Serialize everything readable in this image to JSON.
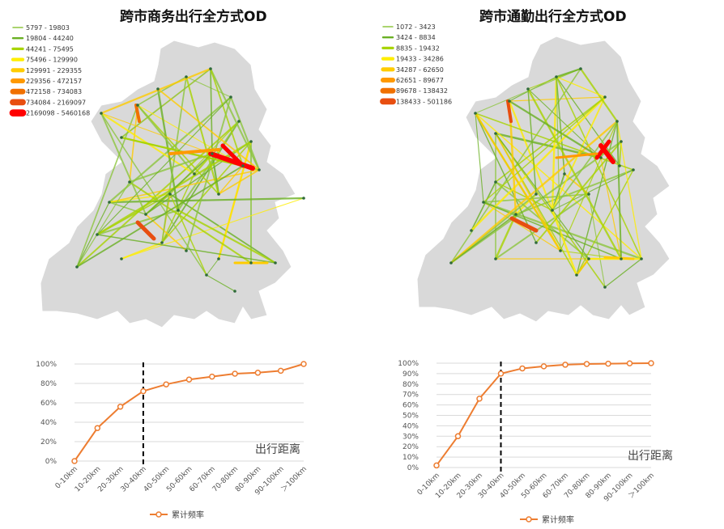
{
  "colors": {
    "line": "#ED7D31",
    "map_fill": "#d9d9d9",
    "map_stroke": "#ffffff",
    "grid": "#d9d9d9",
    "class_colors": [
      "#8dc63f",
      "#6ab023",
      "#a8d400",
      "#ffee00",
      "#ffcc00",
      "#ff9900",
      "#f07000",
      "#e84e10",
      "#ff0000"
    ]
  },
  "left": {
    "title": "跨市商务出行全方式OD",
    "legend": [
      "5797 - 19803",
      "19804 - 44240",
      "44241 - 75495",
      "75496 - 129990",
      "129991 - 229355",
      "229356 - 472157",
      "472158 - 734083",
      "734084 - 2169097",
      "2169098 - 5460168"
    ]
  },
  "right": {
    "title": "跨市通勤出行全方式OD",
    "legend": [
      "1072 - 3423",
      "3424 - 8834",
      "8835 - 19432",
      "19433 - 34286",
      "34287 - 62650",
      "62651 - 89677",
      "89678 - 138432",
      "138433 - 501186"
    ]
  },
  "chart_data": [
    {
      "type": "line",
      "categories": [
        "0-10km",
        "10-20km",
        "20-30km",
        "30-40km",
        "40-50km",
        "50-60km",
        "60-70km",
        "70-80km",
        "80-90km",
        "90-100km",
        "＞100km"
      ],
      "series": [
        {
          "name": "累计频率",
          "values": [
            0,
            34,
            56,
            72,
            79,
            84,
            87,
            90,
            91,
            93,
            100
          ]
        }
      ],
      "ylim": [
        0,
        100
      ],
      "yticks": [
        "0%",
        "20%",
        "40%",
        "60%",
        "80%",
        "100%"
      ],
      "xlabel": "出行距离",
      "marker_line_category": "30-40km",
      "grid": true,
      "legend": "bottom"
    },
    {
      "type": "line",
      "categories": [
        "0-10km",
        "10-20km",
        "20-30km",
        "30-40km",
        "40-50km",
        "50-60km",
        "60-70km",
        "70-80km",
        "80-90km",
        "90-100km",
        "＞100km"
      ],
      "series": [
        {
          "name": "累计频率",
          "values": [
            2,
            30,
            66,
            90,
            95,
            97,
            98.5,
            99.2,
            99.5,
            99.8,
            100
          ]
        }
      ],
      "ylim": [
        0,
        100
      ],
      "yticks": [
        "0%",
        "10%",
        "20%",
        "30%",
        "40%",
        "50%",
        "60%",
        "70%",
        "80%",
        "90%",
        "100%"
      ],
      "xlabel": "出行距离",
      "marker_line_category": "30-40km",
      "grid": true,
      "legend": "bottom"
    }
  ]
}
